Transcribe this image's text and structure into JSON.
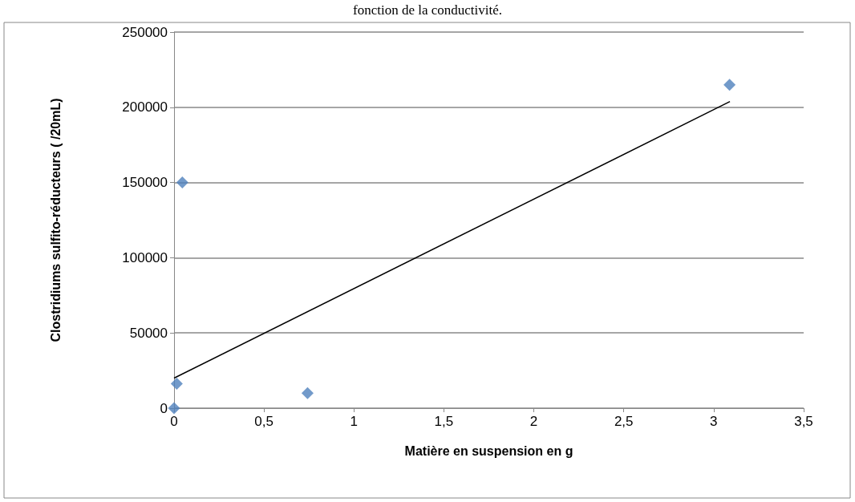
{
  "chart_data": {
    "type": "scatter",
    "annotations": [
      "fonction de la conductivité."
    ],
    "xlabel": "Matière en suspension en g",
    "ylabel": "Clostridiums sulfito-réducteurs ( /20mL)",
    "series": [
      {
        "color": "#4f81bd",
        "marker": "diamond",
        "x": [
          0,
          0.015,
          0.046,
          0.742,
          3.088
        ],
        "values": [
          0,
          16200,
          150000,
          10000,
          215000
        ]
      },
      {
        "type": "line",
        "color": "#000000",
        "marker": "none",
        "x": [
          0,
          3.09
        ],
        "values": [
          20000,
          203800
        ]
      }
    ],
    "xlim": [
      0,
      3.5
    ],
    "xticks": [
      0,
      {
        "value": 0.5,
        "label": "0,5"
      },
      1,
      {
        "value": 1.5,
        "label": "1,5"
      },
      2,
      {
        "value": 2.5,
        "label": "2,5"
      },
      3,
      {
        "value": 3.5,
        "label": "3,5"
      }
    ],
    "ylim": [
      0,
      250000
    ],
    "yticks": [
      0,
      50000,
      100000,
      150000,
      200000,
      250000
    ],
    "grid": "y"
  }
}
